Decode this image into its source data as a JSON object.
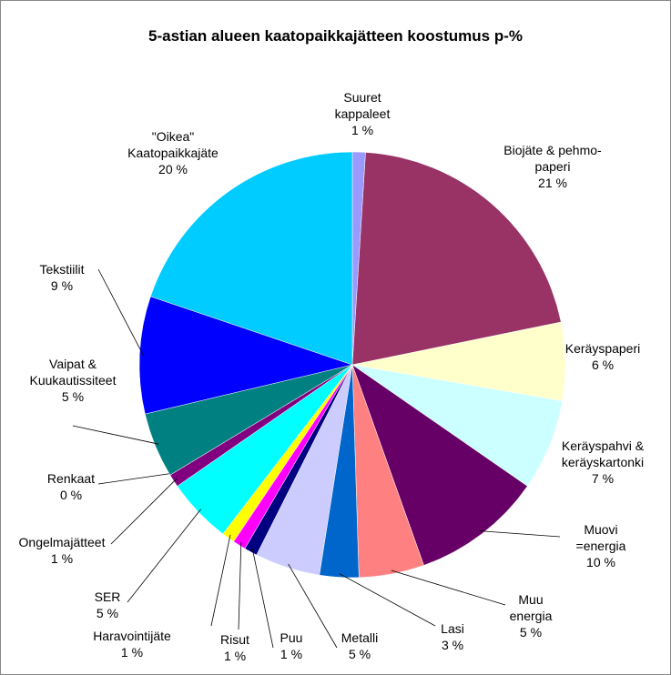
{
  "chart_data": {
    "type": "pie",
    "title": "5-astian alueen kaatopaikkajätteen koostumus p-%",
    "categories": [
      "Suuret\nkappaleet",
      "Biojäte & pehmo-\npaperi",
      "Keräyspaperi",
      "Keräyspahvi &\nkeräyskartonki",
      "Muovi\n=energia",
      "Muu\nenergia",
      "Lasi",
      "Metalli",
      "Puu",
      "Risut",
      "Haravointijäte",
      "SER",
      "Ongelmajätteet",
      "Renkaat",
      "Vaipat &\nKuukautissiteet",
      "Tekstiilit",
      "\"Oikea\"\nKaatopaikkajäte"
    ],
    "values": [
      1,
      21,
      6,
      7,
      10,
      5,
      3,
      5,
      1,
      1,
      1,
      5,
      1,
      0,
      5,
      9,
      20
    ],
    "value_labels": [
      "1 %",
      "21 %",
      "6 %",
      "7 %",
      "10 %",
      "5 %",
      "3 %",
      "5 %",
      "1 %",
      "1 %",
      "1 %",
      "5 %",
      "1 %",
      "0 %",
      "5 %",
      "9 %",
      "20 %"
    ],
    "colors": [
      "#9999ff",
      "#993366",
      "#ffffcc",
      "#ccffff",
      "#660066",
      "#ff8080",
      "#0066cc",
      "#ccccff",
      "#000080",
      "#ff00ff",
      "#ffff00",
      "#00ffff",
      "#800080",
      "#800000",
      "#008080",
      "#0000ff",
      "#00ccff"
    ]
  }
}
